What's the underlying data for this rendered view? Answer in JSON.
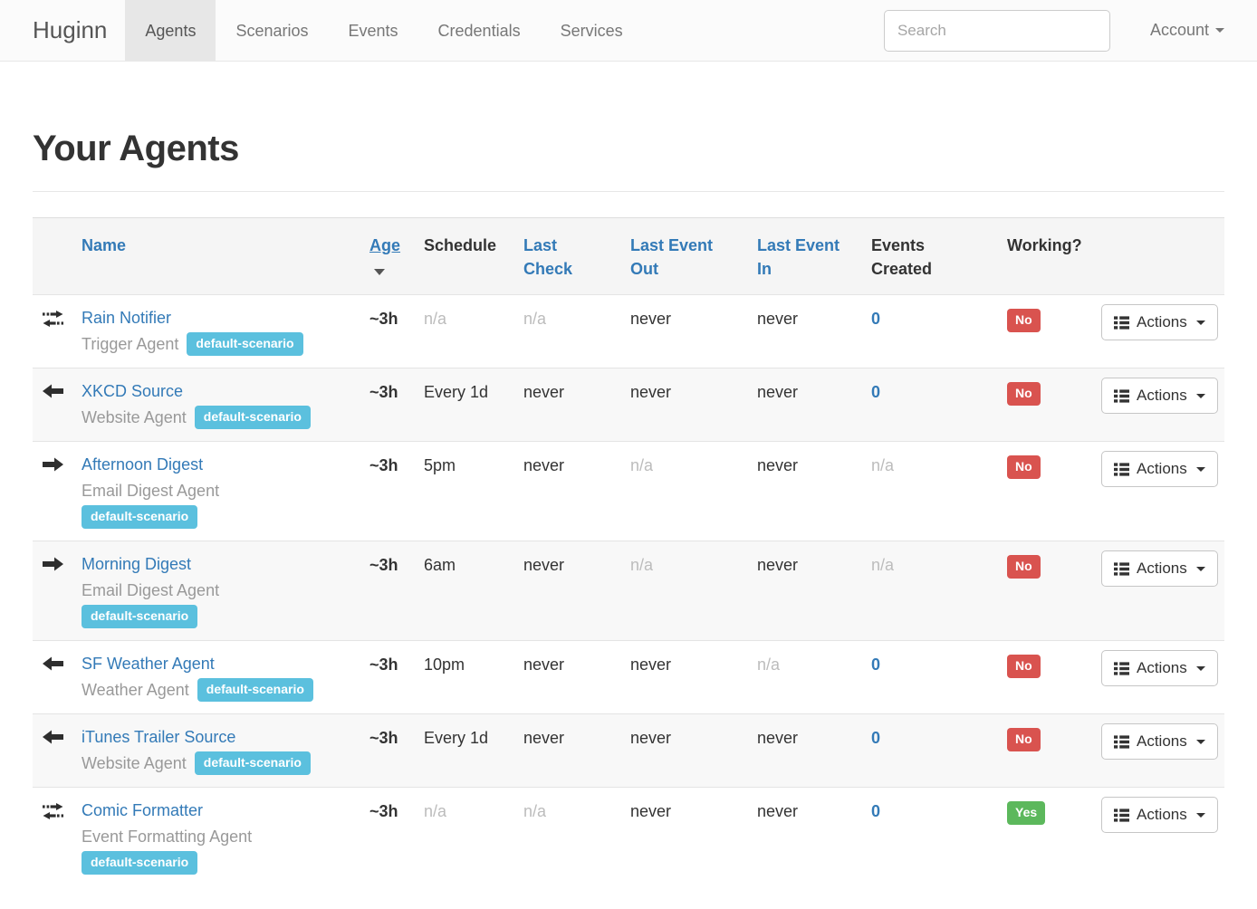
{
  "navbar": {
    "brand": "Huginn",
    "items": [
      {
        "label": "Agents",
        "active": true
      },
      {
        "label": "Scenarios",
        "active": false
      },
      {
        "label": "Events",
        "active": false
      },
      {
        "label": "Credentials",
        "active": false
      },
      {
        "label": "Services",
        "active": false
      }
    ],
    "search": {
      "placeholder": "Search",
      "value": ""
    },
    "account_label": "Account"
  },
  "page": {
    "title": "Your Agents"
  },
  "table": {
    "headers": {
      "name": "Name",
      "age": "Age",
      "schedule": "Schedule",
      "last_check": "Last Check",
      "last_event_out": "Last Event Out",
      "last_event_in": "Last Event In",
      "events_created": "Events Created",
      "working": "Working?"
    },
    "actions_label": "Actions",
    "sorted_by": "Age",
    "sort_direction": "desc",
    "rows": [
      {
        "icon": "exchange",
        "name": "Rain Notifier",
        "type": "Trigger Agent",
        "scenario": "default-scenario",
        "age": "~3h",
        "schedule": "n/a",
        "last_check": "n/a",
        "last_event_out": "never",
        "last_event_in": "never",
        "events_created": "0",
        "working": "No"
      },
      {
        "icon": "arrow-left",
        "name": "XKCD Source",
        "type": "Website Agent",
        "scenario": "default-scenario",
        "age": "~3h",
        "schedule": "Every 1d",
        "last_check": "never",
        "last_event_out": "never",
        "last_event_in": "never",
        "events_created": "0",
        "working": "No"
      },
      {
        "icon": "arrow-right",
        "name": "Afternoon Digest",
        "type": "Email Digest Agent",
        "scenario": "default-scenario",
        "age": "~3h",
        "schedule": "5pm",
        "last_check": "never",
        "last_event_out": "n/a",
        "last_event_in": "never",
        "events_created": "n/a",
        "working": "No"
      },
      {
        "icon": "arrow-right",
        "name": "Morning Digest",
        "type": "Email Digest Agent",
        "scenario": "default-scenario",
        "age": "~3h",
        "schedule": "6am",
        "last_check": "never",
        "last_event_out": "n/a",
        "last_event_in": "never",
        "events_created": "n/a",
        "working": "No"
      },
      {
        "icon": "arrow-left",
        "name": "SF Weather Agent",
        "type": "Weather Agent",
        "scenario": "default-scenario",
        "age": "~3h",
        "schedule": "10pm",
        "last_check": "never",
        "last_event_out": "never",
        "last_event_in": "n/a",
        "events_created": "0",
        "working": "No"
      },
      {
        "icon": "arrow-left",
        "name": "iTunes Trailer Source",
        "type": "Website Agent",
        "scenario": "default-scenario",
        "age": "~3h",
        "schedule": "Every 1d",
        "last_check": "never",
        "last_event_out": "never",
        "last_event_in": "never",
        "events_created": "0",
        "working": "No"
      },
      {
        "icon": "exchange",
        "name": "Comic Formatter",
        "type": "Event Formatting Agent",
        "scenario": "default-scenario",
        "age": "~3h",
        "schedule": "n/a",
        "last_check": "n/a",
        "last_event_out": "never",
        "last_event_in": "never",
        "events_created": "0",
        "working": "Yes"
      }
    ]
  },
  "colors": {
    "link_blue": "#337ab7",
    "label_info": "#5bc0de",
    "label_success": "#5cb85c",
    "label_danger": "#d9534f",
    "text_dark": "#333333",
    "text_muted": "#999999",
    "text_na": "#bcbcbc",
    "header_bg": "#f5f5f5",
    "stripe_bg": "#f8f8f8",
    "navbar_active_bg": "#e7e7e7",
    "border": "#e7e7e7"
  }
}
